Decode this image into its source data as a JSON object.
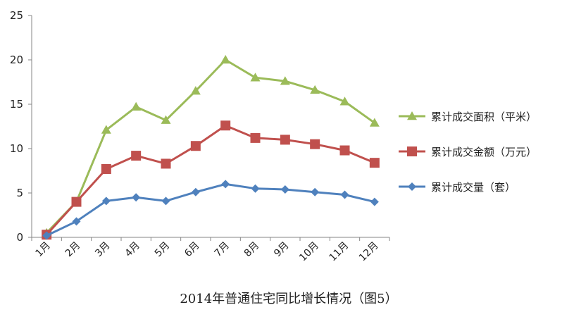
{
  "chart_data": {
    "type": "line",
    "title": "2014年普通住宅同比增长情况（图5）",
    "xlabel": "",
    "ylabel": "",
    "categories": [
      "1月",
      "2月",
      "3月",
      "4月",
      "5月",
      "6月",
      "7月",
      "8月",
      "9月",
      "10月",
      "11月",
      "12月"
    ],
    "ylim": [
      0,
      25
    ],
    "yticks": [
      0,
      5,
      10,
      15,
      20,
      25
    ],
    "grid": false,
    "legend_position": "right",
    "series": [
      {
        "name": "累计成交面积（平米）",
        "color": "#9BBB59",
        "marker": "triangle",
        "values": [
          0.5,
          4.0,
          12.1,
          14.7,
          13.2,
          16.5,
          20.0,
          18.0,
          17.6,
          16.6,
          15.3,
          12.9
        ]
      },
      {
        "name": "累计成交金额（万元）",
        "color": "#C0504D",
        "marker": "square",
        "values": [
          0.3,
          4.0,
          7.7,
          9.2,
          8.3,
          10.3,
          12.6,
          11.2,
          11.0,
          10.5,
          9.8,
          8.4
        ]
      },
      {
        "name": "累计成交量（套）",
        "color": "#4F81BD",
        "marker": "diamond",
        "values": [
          0.2,
          1.8,
          4.1,
          4.5,
          4.1,
          5.1,
          6.0,
          5.5,
          5.4,
          5.1,
          4.8,
          4.0
        ]
      }
    ]
  }
}
